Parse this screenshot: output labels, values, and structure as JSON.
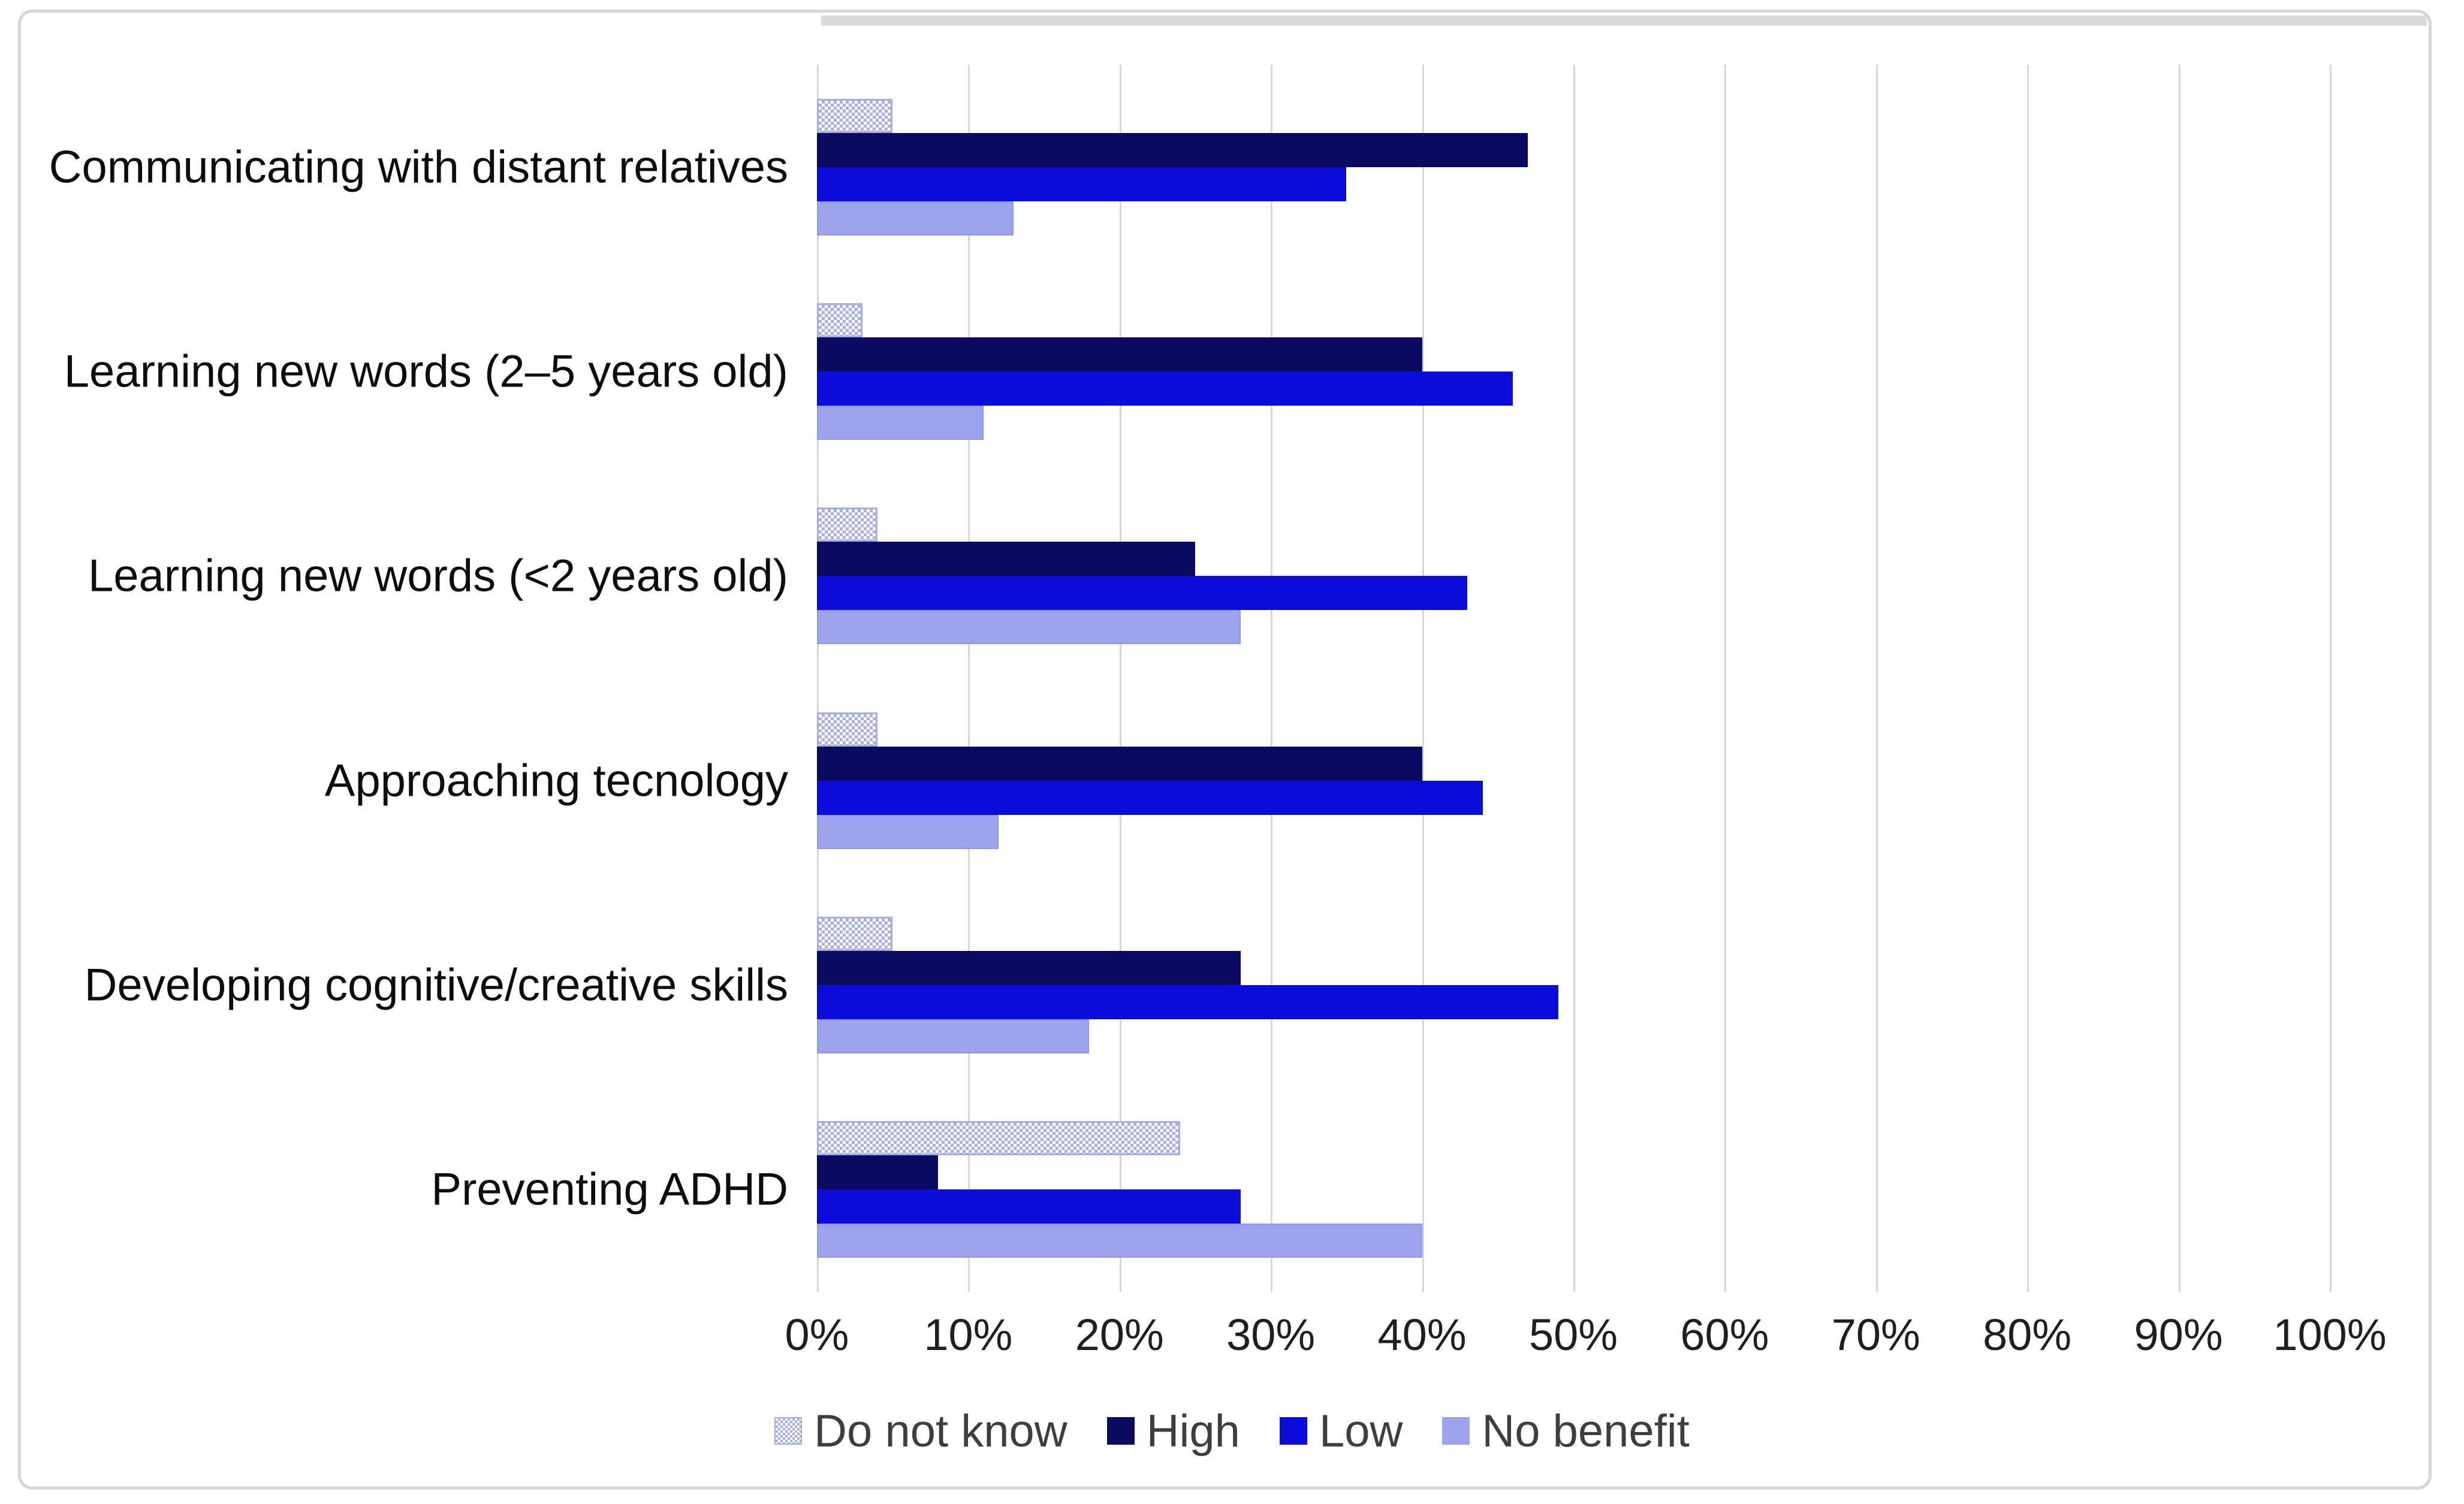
{
  "chart_data": {
    "type": "bar",
    "orientation": "horizontal",
    "title": "",
    "categories": [
      "Communicating with distant relatives",
      "Learning new words (2–5 years old)",
      "Learning new words (<2 years old)",
      "Approaching tecnology",
      "Developing cognitive/creative skills",
      "Preventing ADHD"
    ],
    "series": [
      {
        "name": "Do not know",
        "style": "checker-pattern",
        "color": "#a9afe9",
        "values": [
          5,
          3,
          4,
          4,
          5,
          24
        ]
      },
      {
        "name": "High",
        "style": "solid",
        "color": "#0a0a61",
        "values": [
          47,
          40,
          25,
          40,
          28,
          8
        ]
      },
      {
        "name": "Low",
        "style": "solid",
        "color": "#0d0ddb",
        "values": [
          35,
          46,
          43,
          44,
          49,
          28
        ]
      },
      {
        "name": "No benefit",
        "style": "solid",
        "color": "#9ea3ee",
        "values": [
          13,
          11,
          28,
          12,
          18,
          40
        ]
      }
    ],
    "x_axis": {
      "min": 0,
      "max": 100,
      "step": 10,
      "tick_labels": [
        "0%",
        "10%",
        "20%",
        "30%",
        "40%",
        "50%",
        "60%",
        "70%",
        "80%",
        "90%",
        "100%"
      ],
      "grid": true,
      "gridline_color": "#d8d8d8"
    },
    "legend": {
      "position": "bottom-center",
      "text_color": "#3e3e3e"
    }
  }
}
